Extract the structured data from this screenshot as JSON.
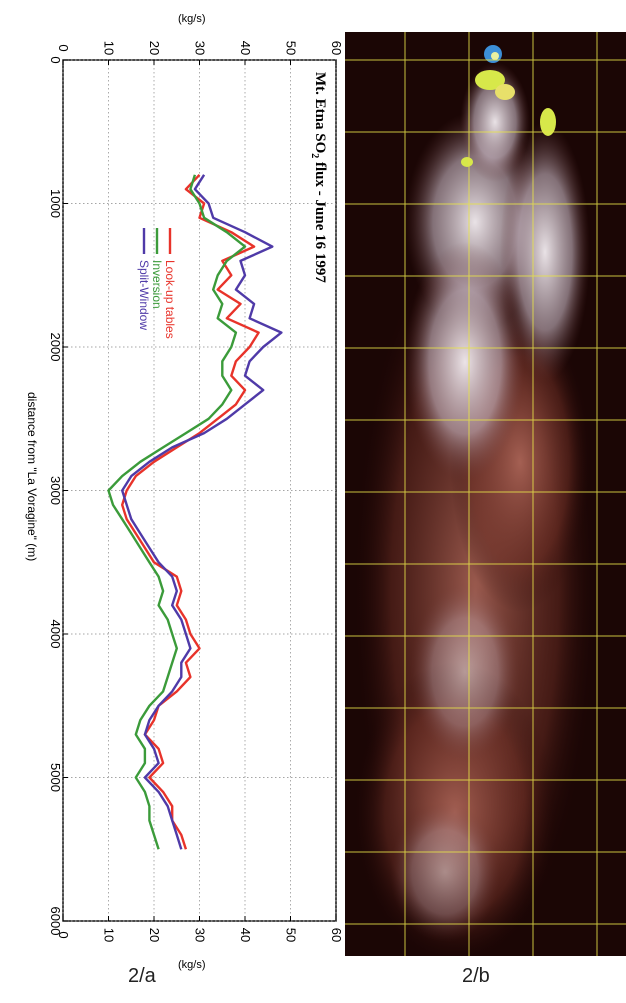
{
  "figure": {
    "panel_a_label": "2/a",
    "panel_b_label": "2/b"
  },
  "chart_data": {
    "type": "line",
    "title": "Mt. Etna SO",
    "title_sub": "2",
    "title_rest": " flux - June 16 1997",
    "xlabel": "distance from \"La Voragine\" (m)",
    "ylabel": "(kg/s)",
    "xlim": [
      0,
      6000
    ],
    "ylim": [
      0,
      60
    ],
    "x_ticks": [
      0,
      1000,
      2000,
      3000,
      4000,
      5000,
      6000
    ],
    "y_ticks": [
      0,
      10,
      20,
      30,
      40,
      50,
      60
    ],
    "grid": true,
    "legend_position": "upper-left",
    "x": [
      800,
      900,
      1000,
      1100,
      1200,
      1300,
      1400,
      1500,
      1600,
      1700,
      1800,
      1900,
      2000,
      2100,
      2200,
      2300,
      2400,
      2500,
      2600,
      2700,
      2800,
      2900,
      3000,
      3100,
      3200,
      3300,
      3400,
      3500,
      3600,
      3700,
      3800,
      3900,
      4000,
      4100,
      4200,
      4300,
      4400,
      4500,
      4600,
      4700,
      4800,
      4900,
      5000,
      5100,
      5200,
      5300,
      5400,
      5500
    ],
    "series": [
      {
        "name": "Look-up tables",
        "color": "#e8332a",
        "values": [
          30,
          27,
          31,
          30,
          37,
          42,
          35,
          37,
          34,
          39,
          36,
          43,
          41,
          38,
          37,
          40,
          38,
          34,
          30,
          25,
          20,
          16,
          14,
          13,
          14,
          16,
          18,
          20,
          25,
          26,
          25,
          27,
          28,
          30,
          27,
          28,
          25,
          21,
          20,
          18,
          21,
          22,
          19,
          22,
          24,
          24,
          26,
          27
        ]
      },
      {
        "name": "Inversion",
        "color": "#3b9b3a",
        "values": [
          29,
          28,
          30,
          31,
          36,
          40,
          36,
          34,
          33,
          35,
          34,
          38,
          37,
          35,
          35,
          37,
          35,
          32,
          27,
          22,
          17,
          13,
          10,
          11,
          13,
          15,
          17,
          19,
          21,
          22,
          21,
          23,
          24,
          25,
          24,
          23,
          22,
          19,
          17,
          16,
          18,
          18,
          16,
          18,
          19,
          19,
          20,
          21
        ]
      },
      {
        "name": "Split-Window",
        "color": "#4f3aa8",
        "values": [
          31,
          29,
          32,
          33,
          40,
          46,
          39,
          40,
          38,
          42,
          41,
          48,
          44,
          41,
          40,
          44,
          40,
          36,
          31,
          24,
          19,
          15,
          13,
          14,
          15,
          17,
          19,
          21,
          24,
          25,
          24,
          26,
          27,
          28,
          26,
          26,
          24,
          21,
          19,
          18,
          20,
          21,
          18,
          21,
          23,
          24,
          25,
          26
        ]
      }
    ]
  }
}
